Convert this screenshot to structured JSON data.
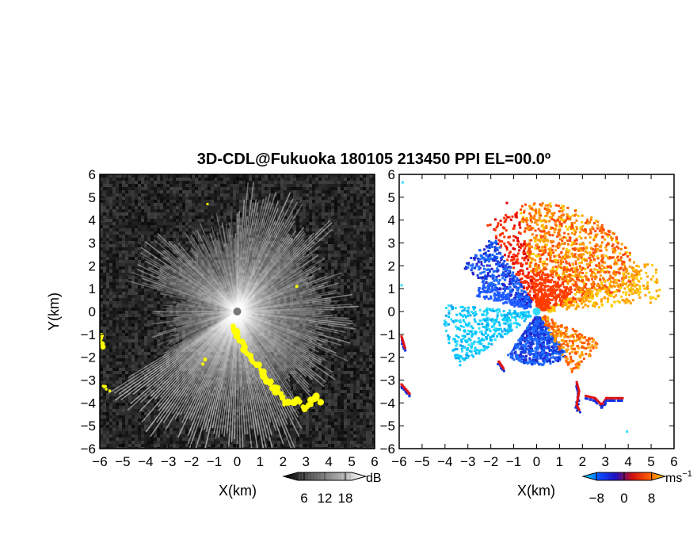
{
  "chart_data": [
    {
      "type": "heatmap",
      "title": "3D-CDL@Fukuoka 180105 213450 PPI EL=00.0º",
      "xlabel": "X(km)",
      "ylabel": "Y(km)",
      "xlim": [
        -6,
        6
      ],
      "ylim": [
        -6,
        6
      ],
      "x_ticks": [
        "−6",
        "−5",
        "−4",
        "−3",
        "−2",
        "−1",
        "0",
        "1",
        "2",
        "3",
        "4",
        "5",
        "6"
      ],
      "y_ticks": [
        "−6",
        "−5",
        "−4",
        "−3",
        "−2",
        "−1",
        "0",
        "1",
        "2",
        "3",
        "4",
        "5",
        "6"
      ],
      "radar_site": [
        0,
        0
      ],
      "colormap": "grayscale",
      "overlay_color": "#ffff00",
      "colorbar": {
        "unit": "dB",
        "range": [
          0,
          24
        ],
        "tick_values": [
          6,
          12,
          18
        ],
        "tick_labels": [
          "6",
          "12",
          "18"
        ],
        "stops": [
          "#000000",
          "#ffffff"
        ]
      }
    },
    {
      "type": "heatmap",
      "xlabel": "X(km)",
      "xlim": [
        -6,
        6
      ],
      "ylim": [
        -6,
        6
      ],
      "x_ticks": [
        "−6",
        "−5",
        "−4",
        "−3",
        "−2",
        "−1",
        "0",
        "1",
        "2",
        "3",
        "4",
        "5",
        "6"
      ],
      "y_ticks": [
        "−6",
        "−5",
        "−4",
        "−3",
        "−2",
        "−1",
        "0",
        "1",
        "2",
        "3",
        "4",
        "5",
        "6"
      ],
      "radar_site": [
        0,
        0
      ],
      "colorbar": {
        "unit": "ms",
        "unit_sup": "−1",
        "range": [
          -12,
          12
        ],
        "tick_values": [
          -8,
          0,
          8
        ],
        "tick_labels": [
          "−8",
          "0",
          "8"
        ],
        "stops": [
          "#00eeff",
          "#0a4cff",
          "#2010c0",
          "#d01010",
          "#ff5a00",
          "#ffd000"
        ]
      }
    }
  ]
}
